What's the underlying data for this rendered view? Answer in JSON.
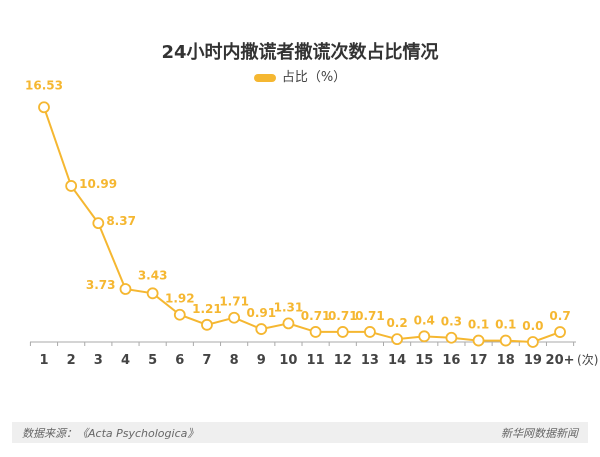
{
  "chart_data": {
    "type": "line",
    "title": "24小时内撒谎者撒谎次数占比情况",
    "legend": [
      "占比（%）"
    ],
    "legend_position": "top-center",
    "xlabel": "(次)",
    "ylabel": "",
    "categories": [
      "1",
      "2",
      "3",
      "4",
      "5",
      "6",
      "7",
      "8",
      "9",
      "10",
      "11",
      "12",
      "13",
      "14",
      "15",
      "16",
      "17",
      "18",
      "19",
      "20+"
    ],
    "series": [
      {
        "name": "占比（%）",
        "color": "#F5B731",
        "values": [
          16.53,
          10.99,
          8.37,
          3.73,
          3.43,
          1.92,
          1.21,
          1.71,
          0.91,
          1.31,
          0.71,
          0.71,
          0.71,
          0.2,
          0.4,
          0.3,
          0.1,
          0.1,
          0.0,
          0.7
        ],
        "labels": [
          "16.53",
          "10.99",
          "8.37",
          "3.73",
          "3.43",
          "1.92",
          "1.21",
          "1.71",
          "0.91",
          "1.31",
          "0.71",
          "0.71",
          "0.71",
          "0.2",
          "0.4",
          "0.3",
          "0.1",
          "0.1",
          "0.0",
          "0.7"
        ]
      }
    ],
    "ylim": [
      0,
      17
    ],
    "grid": false
  },
  "footer": {
    "source": "数据来源：《Acta Psychologica》",
    "brand": "新华网数据新闻"
  }
}
